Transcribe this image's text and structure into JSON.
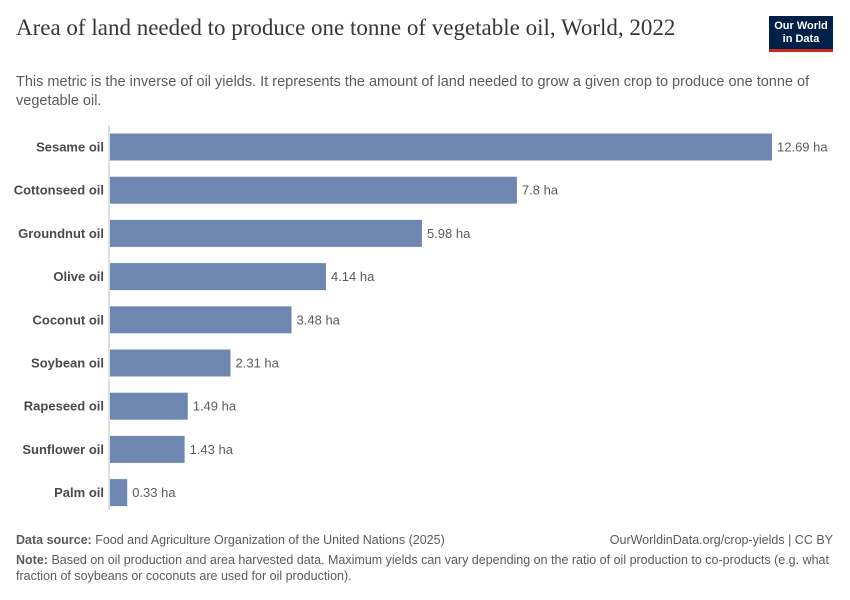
{
  "header": {
    "title": "Area of land needed to produce one tonne of vegetable oil, World, 2022",
    "subtitle": "This metric is the inverse of oil yields. It represents the amount of land needed to grow a given crop to produce one tonne of vegetable oil.",
    "logo_line1": "Our World",
    "logo_line2": "in Data"
  },
  "chart_data": {
    "type": "bar",
    "orientation": "horizontal",
    "categories": [
      "Sesame oil",
      "Cottonseed oil",
      "Groundnut oil",
      "Olive oil",
      "Coconut oil",
      "Soybean oil",
      "Rapeseed oil",
      "Sunflower oil",
      "Palm oil"
    ],
    "values": [
      12.69,
      7.8,
      5.98,
      4.14,
      3.48,
      2.31,
      1.49,
      1.43,
      0.33
    ],
    "value_labels": [
      "12.69 ha",
      "7.8 ha",
      "5.98 ha",
      "4.14 ha",
      "3.48 ha",
      "2.31 ha",
      "1.49 ha",
      "1.43 ha",
      "0.33 ha"
    ],
    "unit": "ha",
    "xlim": [
      0,
      12.69
    ],
    "bar_color": "#6d87b0",
    "grid": false
  },
  "footer": {
    "source_label": "Data source:",
    "source_text": "Food and Agriculture Organization of the United Nations (2025)",
    "url_text": "OurWorldinData.org/crop-yields | CC BY",
    "note_label": "Note:",
    "note_text": "Based on oil production and area harvested data. Maximum yields can vary depending on the ratio of oil production to co-products (e.g. what fraction of soybeans or coconuts are used for oil production)."
  }
}
